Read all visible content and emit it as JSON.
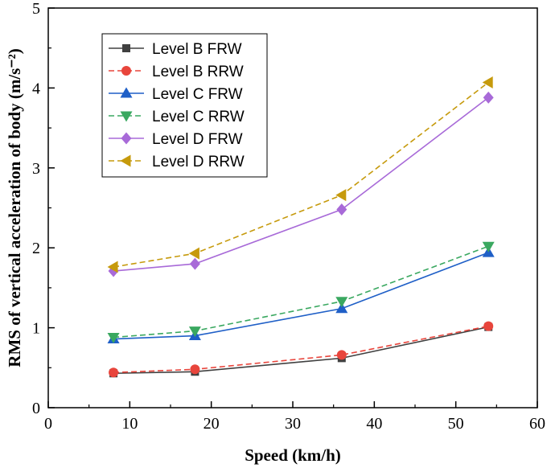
{
  "chart_data": {
    "type": "line",
    "xlabel": "Speed (km/h)",
    "ylabel": "RMS of vertical acceleration of  body (m/s⁻²)",
    "xlim": [
      0,
      60
    ],
    "ylim": [
      0,
      5
    ],
    "xticks": [
      0,
      10,
      20,
      30,
      40,
      50,
      60
    ],
    "yticks": [
      0,
      1,
      2,
      3,
      4,
      5
    ],
    "grid": false,
    "legend_position": "top-left",
    "x": [
      8,
      18,
      36,
      54
    ],
    "series": [
      {
        "name": "Level B  FRW",
        "values": [
          0.43,
          0.45,
          0.62,
          1.01
        ],
        "color": "#404040",
        "dash": "solid",
        "marker": "square"
      },
      {
        "name": "Level B  RRW",
        "values": [
          0.44,
          0.48,
          0.66,
          1.02
        ],
        "color": "#e8453c",
        "dash": "dashed",
        "marker": "circle"
      },
      {
        "name": "Level C  FRW",
        "values": [
          0.86,
          0.9,
          1.24,
          1.94
        ],
        "color": "#1f5fc7",
        "dash": "solid",
        "marker": "triangle-up"
      },
      {
        "name": "Level C  RRW",
        "values": [
          0.88,
          0.96,
          1.33,
          2.02
        ],
        "color": "#3aa860",
        "dash": "dashed",
        "marker": "triangle-down"
      },
      {
        "name": "Level D  FRW",
        "values": [
          1.71,
          1.8,
          2.48,
          3.88
        ],
        "color": "#a86ad8",
        "dash": "solid",
        "marker": "diamond"
      },
      {
        "name": "Level D  RRW",
        "values": [
          1.76,
          1.93,
          2.66,
          4.07
        ],
        "color": "#c69a0c",
        "dash": "dashed",
        "marker": "triangle-left"
      }
    ]
  }
}
